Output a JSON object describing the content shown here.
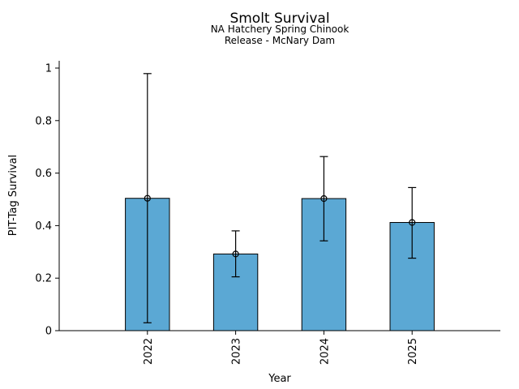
{
  "figure": {
    "background": "#ffffff"
  },
  "chart_data": {
    "type": "bar",
    "title": "Smolt Survival",
    "subtitle_lines": [
      "NA Hatchery Spring Chinook",
      "Release - McNary Dam"
    ],
    "xlabel": "Year",
    "ylabel": "PIT-Tag Survival",
    "categories": [
      "2022",
      "2023",
      "2024",
      "2025"
    ],
    "values": [
      0.504,
      0.292,
      0.503,
      0.412
    ],
    "error_low": [
      0.03,
      0.205,
      0.342,
      0.276
    ],
    "error_high": [
      0.979,
      0.38,
      0.663,
      0.545
    ],
    "ylim": [
      0,
      1
    ],
    "yticks": [
      0,
      0.2,
      0.4,
      0.6,
      0.8,
      1
    ],
    "ytick_labels": [
      "0",
      "0.2",
      "0.4",
      "0.6",
      "0.8",
      "1"
    ],
    "xtick_rotation_deg": 90,
    "grid": false,
    "legend_position": "none",
    "bar_color": "#5BA8D4",
    "bar_edge_color": "#000000",
    "errorbar_color": "#000000",
    "marker": "open-circle",
    "text_color": "#000000"
  }
}
